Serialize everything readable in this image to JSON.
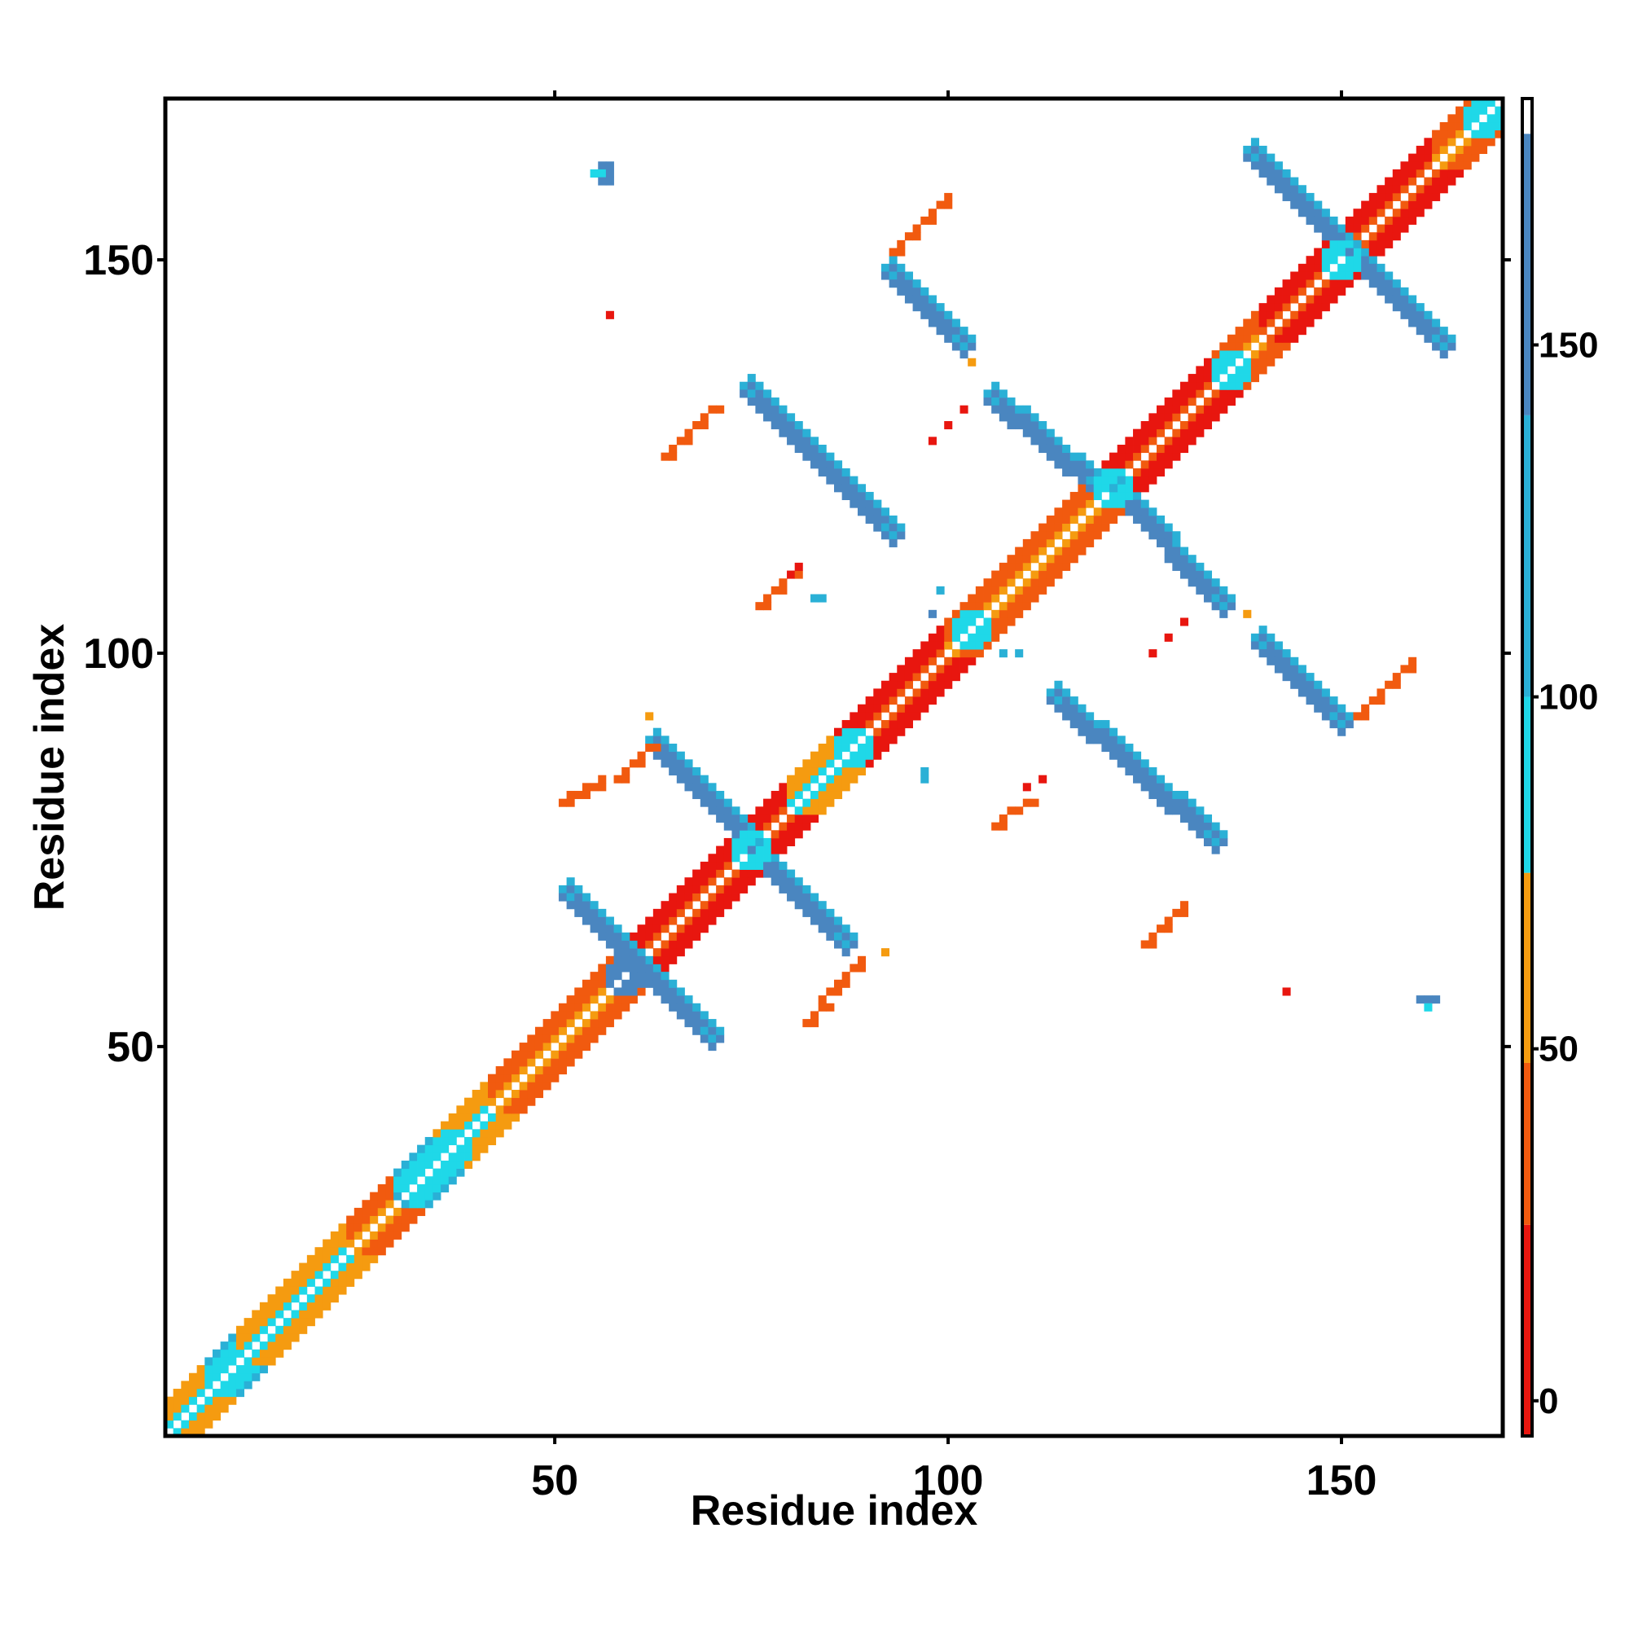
{
  "chart_data": {
    "type": "heatmap",
    "title": "",
    "xlabel": "Residue index",
    "ylabel": "Residue index",
    "xlim": [
      1,
      170
    ],
    "ylim": [
      1,
      170
    ],
    "x_ticks": [
      50,
      100,
      150
    ],
    "y_ticks": [
      50,
      100,
      150
    ],
    "grid": false,
    "legend": "right",
    "colorbar": {
      "ticks": [
        0,
        50,
        100,
        150
      ],
      "range": [
        -5,
        185
      ],
      "stops": [
        {
          "from": -5,
          "to": 25,
          "color": "#e8160f"
        },
        {
          "from": 25,
          "to": 48,
          "color": "#f15a0f"
        },
        {
          "from": 48,
          "to": 75,
          "color": "#f59b10"
        },
        {
          "from": 75,
          "to": 100,
          "color": "#1fd8e8"
        },
        {
          "from": 100,
          "to": 140,
          "color": "#2ab0d6"
        },
        {
          "from": 140,
          "to": 180,
          "color": "#4a86c0"
        },
        {
          "from": 180,
          "to": 185,
          "color": "#ffffff"
        }
      ]
    },
    "diagonal_helix_segments": [
      {
        "start": 1,
        "end": 6,
        "value": 60
      },
      {
        "start": 6,
        "end": 10,
        "value": 95
      },
      {
        "start": 10,
        "end": 15,
        "value": 60
      },
      {
        "start": 15,
        "end": 24,
        "value": 60
      },
      {
        "start": 24,
        "end": 30,
        "value": 40
      },
      {
        "start": 30,
        "end": 35,
        "value": 95
      },
      {
        "start": 35,
        "end": 42,
        "value": 60
      },
      {
        "start": 42,
        "end": 59,
        "value": 35
      },
      {
        "start": 59,
        "end": 70,
        "value": 10
      },
      {
        "start": 70,
        "end": 80,
        "value": 10
      },
      {
        "start": 80,
        "end": 86,
        "value": 60
      },
      {
        "start": 86,
        "end": 100,
        "value": 10
      },
      {
        "start": 100,
        "end": 108,
        "value": 40
      },
      {
        "start": 108,
        "end": 120,
        "value": 35
      },
      {
        "start": 120,
        "end": 134,
        "value": 10
      },
      {
        "start": 134,
        "end": 140,
        "value": 40
      },
      {
        "start": 140,
        "end": 162,
        "value": 10
      },
      {
        "start": 162,
        "end": 170,
        "value": 40
      }
    ],
    "strands": [
      {
        "x0": 51,
        "y0": 70,
        "x1": 70,
        "y1": 51,
        "value": 160
      },
      {
        "x0": 62,
        "y0": 89,
        "x1": 87,
        "y1": 63,
        "value": 160
      },
      {
        "x0": 74,
        "y0": 134,
        "x1": 93,
        "y1": 115,
        "value": 160
      },
      {
        "x0": 92,
        "y0": 149,
        "x1": 102,
        "y1": 139,
        "value": 160
      },
      {
        "x0": 105,
        "y0": 133,
        "x1": 119,
        "y1": 121,
        "value": 160
      },
      {
        "x0": 120,
        "y0": 122,
        "x1": 135,
        "y1": 106,
        "value": 160
      },
      {
        "x0": 113,
        "y0": 95,
        "x1": 134,
        "y1": 76,
        "value": 160
      },
      {
        "x0": 139,
        "y0": 102,
        "x1": 150,
        "y1": 91,
        "value": 160
      },
      {
        "x0": 138,
        "y0": 164,
        "x1": 163,
        "y1": 139,
        "value": 160
      }
    ],
    "strand_junctions": [
      {
        "x": 8,
        "y": 8,
        "value": 95
      },
      {
        "x": 33,
        "y": 33,
        "value": 95
      },
      {
        "x": 37,
        "y": 37,
        "value": 95
      },
      {
        "x": 59,
        "y": 59,
        "value": 160
      },
      {
        "x": 75,
        "y": 75,
        "value": 95
      },
      {
        "x": 88,
        "y": 88,
        "value": 95
      },
      {
        "x": 103,
        "y": 103,
        "value": 95
      },
      {
        "x": 121,
        "y": 121,
        "value": 95
      },
      {
        "x": 136,
        "y": 136,
        "value": 95
      },
      {
        "x": 150,
        "y": 150,
        "value": 95
      },
      {
        "x": 168,
        "y": 168,
        "value": 95
      }
    ],
    "contacts": [
      {
        "x": 56,
        "y": 162,
        "value": 140
      },
      {
        "x": 57,
        "y": 162,
        "value": 140
      },
      {
        "x": 56,
        "y": 161,
        "value": 95
      },
      {
        "x": 55,
        "y": 161,
        "value": 95
      },
      {
        "x": 57,
        "y": 161,
        "value": 140
      },
      {
        "x": 56,
        "y": 160,
        "value": 140
      },
      {
        "x": 57,
        "y": 160,
        "value": 140
      },
      {
        "x": 57,
        "y": 143,
        "value": 10
      },
      {
        "x": 160,
        "y": 56,
        "value": 140
      },
      {
        "x": 161,
        "y": 56,
        "value": 140
      },
      {
        "x": 161,
        "y": 55,
        "value": 95
      },
      {
        "x": 162,
        "y": 56,
        "value": 140
      },
      {
        "x": 143,
        "y": 57,
        "value": 10
      },
      {
        "x": 83,
        "y": 107,
        "value": 130
      },
      {
        "x": 84,
        "y": 107,
        "value": 130
      },
      {
        "x": 97,
        "y": 85,
        "value": 130
      },
      {
        "x": 97,
        "y": 84,
        "value": 130
      },
      {
        "x": 99,
        "y": 108,
        "value": 130
      },
      {
        "x": 98,
        "y": 105,
        "value": 140
      },
      {
        "x": 107,
        "y": 100,
        "value": 130
      },
      {
        "x": 109,
        "y": 100,
        "value": 130
      },
      {
        "x": 103,
        "y": 137,
        "value": 60
      },
      {
        "x": 102,
        "y": 131,
        "value": 10
      },
      {
        "x": 100,
        "y": 129,
        "value": 10
      },
      {
        "x": 98,
        "y": 127,
        "value": 10
      },
      {
        "x": 62,
        "y": 92,
        "value": 60
      },
      {
        "x": 92,
        "y": 62,
        "value": 60
      },
      {
        "x": 138,
        "y": 105,
        "value": 60
      },
      {
        "x": 130,
        "y": 104,
        "value": 10
      },
      {
        "x": 128,
        "y": 102,
        "value": 10
      },
      {
        "x": 126,
        "y": 100,
        "value": 10
      },
      {
        "x": 112,
        "y": 84,
        "value": 10
      },
      {
        "x": 110,
        "y": 83,
        "value": 10
      },
      {
        "x": 81,
        "y": 111,
        "value": 10
      },
      {
        "x": 80,
        "y": 110,
        "value": 10
      }
    ],
    "off_diagonal_steps": [
      {
        "x0": 64,
        "y0": 125,
        "x1": 70,
        "y1": 131,
        "value": 40
      },
      {
        "x0": 76,
        "y0": 106,
        "x1": 80,
        "y1": 110,
        "value": 40
      },
      {
        "x0": 93,
        "y0": 151,
        "x1": 100,
        "y1": 158,
        "value": 40
      },
      {
        "x0": 51,
        "y0": 81,
        "x1": 56,
        "y1": 84,
        "value": 40
      },
      {
        "x0": 58,
        "y0": 84,
        "x1": 62,
        "y1": 88,
        "value": 40
      },
      {
        "x0": 82,
        "y0": 53,
        "x1": 85,
        "y1": 57,
        "value": 40
      },
      {
        "x0": 86,
        "y0": 58,
        "x1": 89,
        "y1": 61,
        "value": 40
      },
      {
        "x0": 106,
        "y0": 78,
        "x1": 110,
        "y1": 81,
        "value": 40
      },
      {
        "x0": 125,
        "y0": 63,
        "x1": 130,
        "y1": 68,
        "value": 40
      },
      {
        "x0": 152,
        "y0": 92,
        "x1": 159,
        "y1": 99,
        "value": 40
      }
    ]
  }
}
